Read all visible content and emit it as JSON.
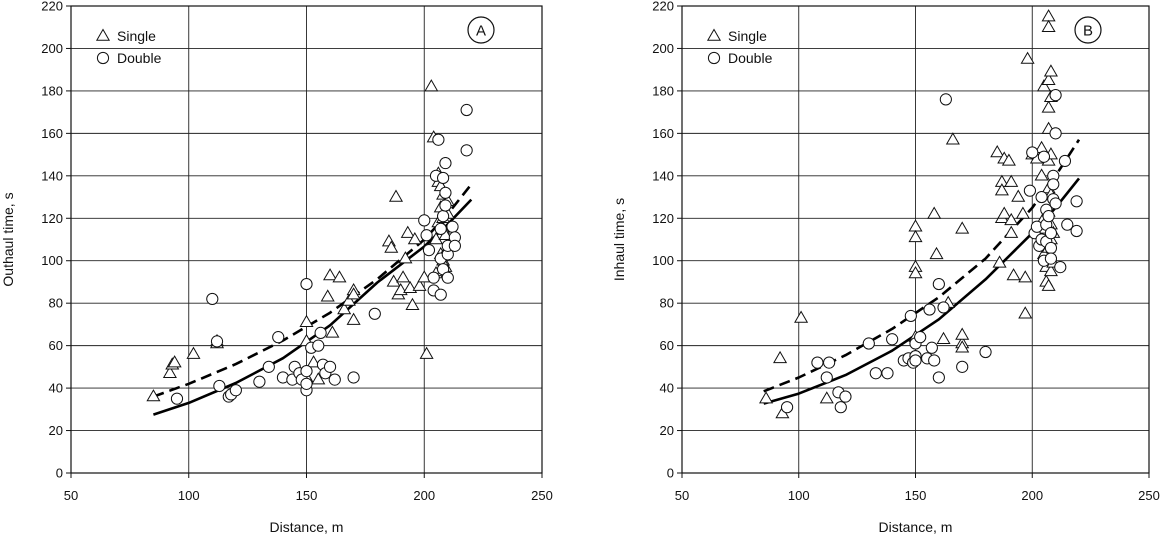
{
  "chart_data": [
    {
      "type": "scatter",
      "panel_label": "A",
      "xlabel": "Distance, m",
      "ylabel": "Outhaul time, s",
      "xlim": [
        50,
        250
      ],
      "ylim": [
        0,
        220
      ],
      "xticks": [
        50,
        100,
        150,
        200,
        250
      ],
      "yticks": [
        0,
        20,
        40,
        60,
        80,
        100,
        120,
        140,
        160,
        180,
        200,
        220
      ],
      "grid": true,
      "legend_position": "top-left",
      "series": [
        {
          "name": "Single",
          "marker": "triangle",
          "points": [
            [
              85,
              36
            ],
            [
              92,
              47
            ],
            [
              93,
              51
            ],
            [
              94,
              52
            ],
            [
              102,
              56
            ],
            [
              112,
              61
            ],
            [
              112,
              62
            ],
            [
              150,
              71
            ],
            [
              150,
              62
            ],
            [
              153,
              52
            ],
            [
              155,
              44
            ],
            [
              150,
              45
            ],
            [
              159,
              83
            ],
            [
              160,
              93
            ],
            [
              161,
              66
            ],
            [
              164,
              92
            ],
            [
              166,
              77
            ],
            [
              168,
              81
            ],
            [
              170,
              86
            ],
            [
              170,
              72
            ],
            [
              170,
              84
            ],
            [
              185,
              109
            ],
            [
              186,
              106
            ],
            [
              187,
              90
            ],
            [
              188,
              130
            ],
            [
              189,
              84
            ],
            [
              190,
              86
            ],
            [
              191,
              92
            ],
            [
              192,
              101
            ],
            [
              193,
              113
            ],
            [
              194,
              87
            ],
            [
              195,
              79
            ],
            [
              196,
              110
            ],
            [
              198,
              88
            ],
            [
              200,
              92
            ],
            [
              201,
              56
            ],
            [
              203,
              182
            ],
            [
              204,
              158
            ],
            [
              205,
              110
            ],
            [
              205,
              94
            ],
            [
              206,
              141
            ],
            [
              206,
              137
            ],
            [
              206,
              118
            ],
            [
              207,
              135
            ],
            [
              207,
              125
            ],
            [
              207,
              103
            ],
            [
              208,
              131
            ],
            [
              208,
              120
            ],
            [
              208,
              115
            ],
            [
              208,
              100
            ],
            [
              208,
              95
            ],
            [
              209,
              112
            ],
            [
              209,
              104
            ],
            [
              209,
              97
            ],
            [
              210,
              128
            ],
            [
              210,
              122
            ],
            [
              211,
              108
            ]
          ]
        },
        {
          "name": "Double",
          "marker": "circle",
          "points": [
            [
              95,
              35
            ],
            [
              110,
              82
            ],
            [
              112,
              62
            ],
            [
              113,
              41
            ],
            [
              117,
              36
            ],
            [
              118,
              37
            ],
            [
              120,
              39
            ],
            [
              130,
              43
            ],
            [
              134,
              50
            ],
            [
              138,
              64
            ],
            [
              140,
              45
            ],
            [
              144,
              44
            ],
            [
              145,
              50
            ],
            [
              147,
              47
            ],
            [
              148,
              44
            ],
            [
              150,
              89
            ],
            [
              150,
              48
            ],
            [
              150,
              39
            ],
            [
              150,
              42
            ],
            [
              152,
              59
            ],
            [
              155,
              60
            ],
            [
              156,
              66
            ],
            [
              157,
              51
            ],
            [
              158,
              47
            ],
            [
              160,
              50
            ],
            [
              162,
              44
            ],
            [
              170,
              45
            ],
            [
              179,
              75
            ],
            [
              200,
              119
            ],
            [
              201,
              112
            ],
            [
              202,
              105
            ],
            [
              204,
              92
            ],
            [
              204,
              86
            ],
            [
              205,
              140
            ],
            [
              206,
              157
            ],
            [
              207,
              115
            ],
            [
              207,
              101
            ],
            [
              207,
              84
            ],
            [
              208,
              139
            ],
            [
              208,
              121
            ],
            [
              208,
              96
            ],
            [
              209,
              132
            ],
            [
              209,
              146
            ],
            [
              209,
              126
            ],
            [
              210,
              103
            ],
            [
              210,
              107
            ],
            [
              210,
              92
            ],
            [
              212,
              116
            ],
            [
              213,
              111
            ],
            [
              213,
              107
            ],
            [
              218,
              171
            ],
            [
              218,
              152
            ]
          ]
        },
        {
          "name": "Single curve",
          "style": "solid",
          "line": [
            [
              85,
              27.5
            ],
            [
              100,
              33
            ],
            [
              120,
              42.4
            ],
            [
              140,
              54.1
            ],
            [
              160,
              69.6
            ],
            [
              180,
              89.7
            ],
            [
              200,
              106.7
            ],
            [
              210,
              117.2
            ],
            [
              220,
              128.8
            ]
          ]
        },
        {
          "name": "Double curve",
          "style": "dashed",
          "line": [
            [
              85,
              36
            ],
            [
              100,
              42
            ],
            [
              120,
              51.3
            ],
            [
              140,
              62.4
            ],
            [
              160,
              75.5
            ],
            [
              180,
              91.3
            ],
            [
              200,
              110
            ],
            [
              210,
              122
            ],
            [
              220,
              136
            ]
          ]
        }
      ]
    },
    {
      "type": "scatter",
      "panel_label": "B",
      "xlabel": "Distance, m",
      "ylabel": "Inhaul time, s",
      "xlim": [
        50,
        250
      ],
      "ylim": [
        0,
        220
      ],
      "xticks": [
        50,
        100,
        150,
        200,
        250
      ],
      "yticks": [
        0,
        20,
        40,
        60,
        80,
        100,
        120,
        140,
        160,
        180,
        200,
        220
      ],
      "grid": true,
      "legend_position": "top-left",
      "series": [
        {
          "name": "Single",
          "marker": "triangle",
          "points": [
            [
              86,
              35
            ],
            [
              92,
              54
            ],
            [
              93,
              28
            ],
            [
              101,
              73
            ],
            [
              112,
              35
            ],
            [
              150,
              116
            ],
            [
              150,
              111
            ],
            [
              150,
              97
            ],
            [
              150,
              94
            ],
            [
              150,
              64
            ],
            [
              158,
              122
            ],
            [
              159,
              103
            ],
            [
              162,
              63
            ],
            [
              164,
              80
            ],
            [
              166,
              157
            ],
            [
              170,
              115
            ],
            [
              170,
              61
            ],
            [
              170,
              65
            ],
            [
              170,
              59
            ],
            [
              185,
              151
            ],
            [
              186,
              99
            ],
            [
              187,
              137
            ],
            [
              187,
              133
            ],
            [
              187,
              120
            ],
            [
              188,
              122
            ],
            [
              188,
              148
            ],
            [
              190,
              147
            ],
            [
              191,
              137
            ],
            [
              191,
              119
            ],
            [
              191,
              113
            ],
            [
              192,
              93
            ],
            [
              194,
              130
            ],
            [
              196,
              122
            ],
            [
              197,
              92
            ],
            [
              197,
              75
            ],
            [
              198,
              195
            ],
            [
              200,
              150
            ],
            [
              202,
              148
            ],
            [
              204,
              153
            ],
            [
              204,
              140
            ],
            [
              205,
              120
            ],
            [
              205,
              182
            ],
            [
              205,
              115
            ],
            [
              205,
              103
            ],
            [
              206,
              97
            ],
            [
              206,
              90
            ],
            [
              207,
              215
            ],
            [
              207,
              210
            ],
            [
              207,
              185
            ],
            [
              207,
              172
            ],
            [
              207,
              162
            ],
            [
              207,
              147
            ],
            [
              207,
              134
            ],
            [
              207,
              123
            ],
            [
              207,
              106
            ],
            [
              207,
              100
            ],
            [
              207,
              88
            ],
            [
              208,
              189
            ],
            [
              208,
              177
            ],
            [
              208,
              150
            ],
            [
              208,
              131
            ],
            [
              208,
              117
            ],
            [
              208,
              110
            ],
            [
              208,
              95
            ],
            [
              209,
              113
            ],
            [
              209,
              99
            ]
          ]
        },
        {
          "name": "Double",
          "marker": "circle",
          "points": [
            [
              95,
              31
            ],
            [
              108,
              52
            ],
            [
              112,
              45
            ],
            [
              113,
              52
            ],
            [
              117,
              38
            ],
            [
              118,
              31
            ],
            [
              120,
              36
            ],
            [
              130,
              61
            ],
            [
              133,
              47
            ],
            [
              138,
              47
            ],
            [
              140,
              63
            ],
            [
              145,
              53
            ],
            [
              147,
              54
            ],
            [
              148,
              74
            ],
            [
              149,
              52
            ],
            [
              150,
              55
            ],
            [
              150,
              61
            ],
            [
              150,
              55
            ],
            [
              150,
              53
            ],
            [
              152,
              64
            ],
            [
              155,
              54
            ],
            [
              156,
              77
            ],
            [
              157,
              59
            ],
            [
              158,
              53
            ],
            [
              160,
              89
            ],
            [
              160,
              45
            ],
            [
              162,
              78
            ],
            [
              163,
              176
            ],
            [
              170,
              50
            ],
            [
              180,
              57
            ],
            [
              199,
              133
            ],
            [
              200,
              151
            ],
            [
              201,
              113
            ],
            [
              202,
              116
            ],
            [
              203,
              107
            ],
            [
              204,
              130
            ],
            [
              204,
              110
            ],
            [
              205,
              149
            ],
            [
              205,
              100
            ],
            [
              206,
              124
            ],
            [
              206,
              117
            ],
            [
              206,
              109
            ],
            [
              207,
              121
            ],
            [
              208,
              113
            ],
            [
              208,
              106
            ],
            [
              208,
              101
            ],
            [
              209,
              140
            ],
            [
              209,
              136
            ],
            [
              209,
              129
            ],
            [
              210,
              178
            ],
            [
              210,
              160
            ],
            [
              210,
              127
            ],
            [
              212,
              97
            ],
            [
              214,
              147
            ],
            [
              215,
              117
            ],
            [
              219,
              128
            ],
            [
              219,
              114
            ]
          ]
        },
        {
          "name": "Single curve",
          "style": "solid",
          "line": [
            [
              85,
              32.7
            ],
            [
              100,
              37.4
            ],
            [
              120,
              46.1
            ],
            [
              140,
              57.6
            ],
            [
              160,
              72.4
            ],
            [
              180,
              91.2
            ],
            [
              200,
              113
            ],
            [
              210,
              125
            ],
            [
              220,
              138.8
            ]
          ]
        },
        {
          "name": "Double curve",
          "style": "dashed",
          "line": [
            [
              85,
              38.5
            ],
            [
              100,
              45
            ],
            [
              120,
              55.5
            ],
            [
              140,
              67.9
            ],
            [
              160,
              82.8
            ],
            [
              180,
              101
            ],
            [
              200,
              125
            ],
            [
              210,
              140
            ],
            [
              220,
              157
            ]
          ]
        }
      ]
    }
  ]
}
